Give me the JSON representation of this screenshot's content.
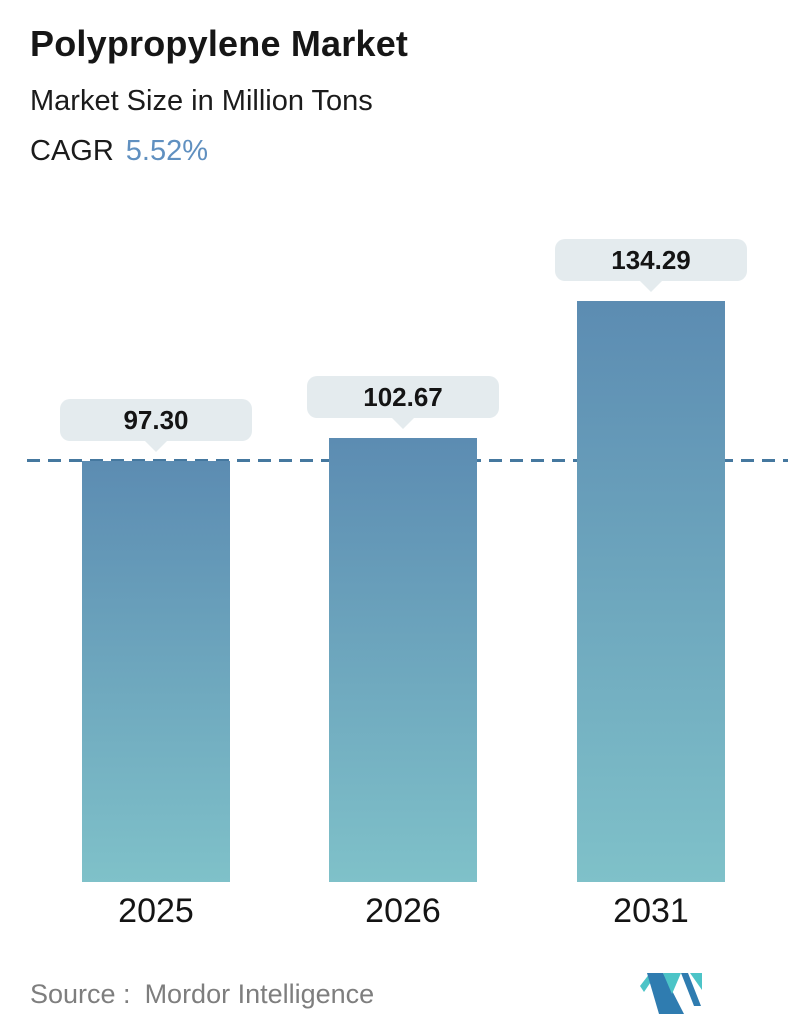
{
  "header": {
    "title": "Polypropylene Market",
    "subtitle": "Market Size in Million Tons",
    "cagr_label": "CAGR",
    "cagr_value": "5.52%"
  },
  "chart_data": {
    "type": "bar",
    "categories": [
      "2025",
      "2026",
      "2031"
    ],
    "values": [
      97.3,
      102.67,
      134.29
    ],
    "value_labels": [
      "97.30",
      "102.67",
      "134.29"
    ],
    "title": "Polypropylene Market",
    "subtitle": "Market Size in Million Tons",
    "ylabel": "Market Size (Million Tons)",
    "xlabel": "",
    "ylim": [
      0,
      140
    ],
    "grid": false,
    "legend": false,
    "reference_line": {
      "value": 97.3,
      "style": "dashed"
    }
  },
  "colors": {
    "cagr_value": "#6090c0",
    "bar_gradient_top": "#5c8cb2",
    "bar_gradient_bottom": "#7fc1c9",
    "dashed_line": "#45789f",
    "callout_bg": "#e4ebee",
    "callout_text": "#141414",
    "source_text": "#7e7e7e",
    "logo_teal": "#4cc4c7",
    "logo_blue": "#2f7cb0"
  },
  "footer": {
    "source_label": "Source :",
    "source_value": "Mordor Intelligence",
    "logo_name": "mordor-intelligence-logo"
  }
}
